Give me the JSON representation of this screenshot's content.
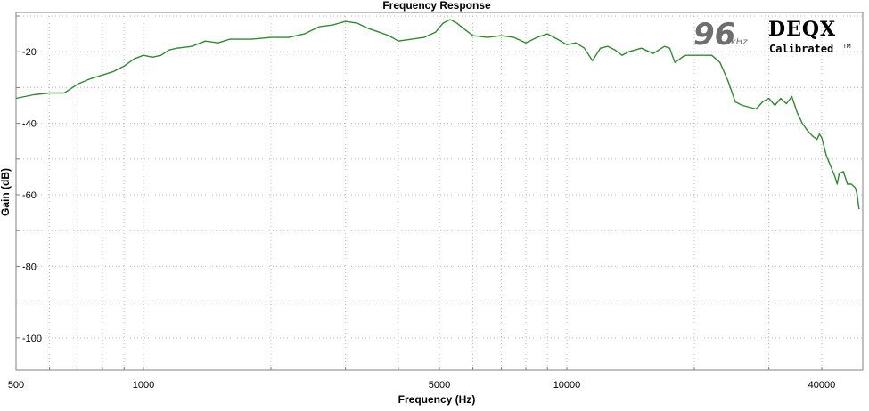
{
  "chart_data": {
    "type": "line",
    "title": "Frequency Response",
    "xlabel": "Frequency (Hz)",
    "ylabel": "Gain (dB)",
    "x_scale": "log",
    "xlim": [
      500,
      50000
    ],
    "ylim": [
      -109,
      -9
    ],
    "x_tick_labels": [
      500,
      1000,
      5000,
      10000,
      40000
    ],
    "y_tick_labels": [
      -20,
      -40,
      -60,
      -80,
      -100
    ],
    "grid": true,
    "series": [
      {
        "color": "#2e8b2e",
        "points": [
          [
            500,
            -33
          ],
          [
            550,
            -32
          ],
          [
            600,
            -31.5
          ],
          [
            650,
            -31.5
          ],
          [
            700,
            -29
          ],
          [
            750,
            -27.5
          ],
          [
            800,
            -26.5
          ],
          [
            850,
            -25.5
          ],
          [
            900,
            -24
          ],
          [
            950,
            -22
          ],
          [
            1000,
            -21
          ],
          [
            1050,
            -21.5
          ],
          [
            1100,
            -21
          ],
          [
            1150,
            -19.5
          ],
          [
            1200,
            -19
          ],
          [
            1300,
            -18.5
          ],
          [
            1400,
            -17
          ],
          [
            1500,
            -17.5
          ],
          [
            1600,
            -16.5
          ],
          [
            1800,
            -16.5
          ],
          [
            2000,
            -16
          ],
          [
            2200,
            -16
          ],
          [
            2400,
            -15
          ],
          [
            2600,
            -13
          ],
          [
            2800,
            -12.5
          ],
          [
            3000,
            -11.5
          ],
          [
            3200,
            -12
          ],
          [
            3400,
            -13.5
          ],
          [
            3600,
            -14.5
          ],
          [
            3800,
            -15.5
          ],
          [
            4000,
            -17
          ],
          [
            4300,
            -16.5
          ],
          [
            4600,
            -16
          ],
          [
            4900,
            -14.5
          ],
          [
            5100,
            -12
          ],
          [
            5300,
            -11
          ],
          [
            5500,
            -12
          ],
          [
            5700,
            -13.5
          ],
          [
            6000,
            -15.5
          ],
          [
            6500,
            -16
          ],
          [
            7000,
            -15.5
          ],
          [
            7500,
            -16
          ],
          [
            8000,
            -17.5
          ],
          [
            8500,
            -16
          ],
          [
            9000,
            -15
          ],
          [
            9500,
            -16.5
          ],
          [
            10000,
            -18
          ],
          [
            10500,
            -17.5
          ],
          [
            11000,
            -19
          ],
          [
            11500,
            -22.5
          ],
          [
            12000,
            -19
          ],
          [
            12500,
            -18.5
          ],
          [
            13000,
            -19.5
          ],
          [
            13500,
            -21
          ],
          [
            14000,
            -20
          ],
          [
            15000,
            -19
          ],
          [
            16000,
            -20.5
          ],
          [
            17000,
            -18.5
          ],
          [
            17500,
            -19
          ],
          [
            18000,
            -23
          ],
          [
            19000,
            -21
          ],
          [
            20000,
            -21
          ],
          [
            22000,
            -21
          ],
          [
            23000,
            -23
          ],
          [
            24000,
            -28
          ],
          [
            25000,
            -34
          ],
          [
            26000,
            -35
          ],
          [
            27000,
            -35.5
          ],
          [
            28000,
            -36
          ],
          [
            29000,
            -34
          ],
          [
            30000,
            -33
          ],
          [
            31000,
            -35
          ],
          [
            32000,
            -33
          ],
          [
            33000,
            -34.5
          ],
          [
            34000,
            -32.5
          ],
          [
            35000,
            -37
          ],
          [
            36000,
            -40
          ],
          [
            37000,
            -42
          ],
          [
            38000,
            -43.5
          ],
          [
            39000,
            -44.5
          ],
          [
            39500,
            -43
          ],
          [
            40000,
            -44
          ],
          [
            41000,
            -49
          ],
          [
            42000,
            -52
          ],
          [
            43000,
            -55
          ],
          [
            43500,
            -57
          ],
          [
            44000,
            -54
          ],
          [
            45000,
            -53.5
          ],
          [
            46000,
            -57
          ],
          [
            47000,
            -57
          ],
          [
            48000,
            -58
          ],
          [
            48500,
            -60
          ],
          [
            49000,
            -64
          ]
        ]
      }
    ]
  },
  "logo": {
    "number": "96",
    "unit": "kHz",
    "brand": "DEQX",
    "subtitle": "Calibrated",
    "trademark": "TM"
  }
}
